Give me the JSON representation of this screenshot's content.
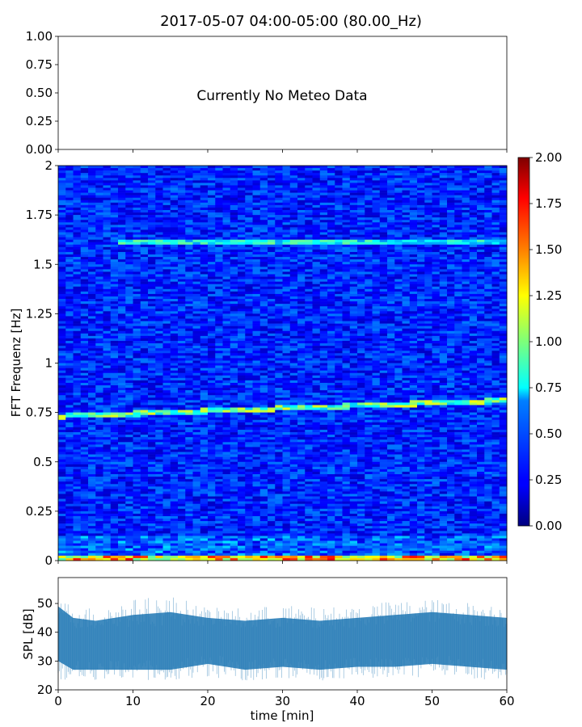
{
  "figure": {
    "title": "2017-05-07 04:00-05:00 (80.00_Hz)"
  },
  "chart_data": [
    {
      "type": "line",
      "panel": "meteo",
      "annotation": "Currently No Meteo Data",
      "ylim": [
        0.0,
        1.0
      ],
      "yticks": [
        "0.00",
        "0.25",
        "0.50",
        "0.75",
        "1.00"
      ],
      "x_tick_labels_shown": false,
      "series": []
    },
    {
      "type": "heatmap",
      "panel": "spectrogram",
      "ylabel": "FFT Frequenz [Hz]",
      "xlim": [
        0,
        60
      ],
      "ylim": [
        0,
        2
      ],
      "yticks": [
        "0",
        "0.25",
        "0.5",
        "0.75",
        "1",
        "1.25",
        "1.5",
        "1.75",
        "2"
      ],
      "colormap": "jet",
      "colorbar": {
        "range": [
          0.0,
          2.0
        ],
        "ticks": [
          "0.00",
          "0.25",
          "0.50",
          "0.75",
          "1.00",
          "1.25",
          "1.50",
          "1.75",
          "2.00"
        ]
      },
      "typical_level": 0.3,
      "bands": [
        {
          "name": "low-frequency band",
          "y_start": 0.73,
          "y_end": 0.81,
          "x_range": [
            0,
            60
          ],
          "level": 1.0
        },
        {
          "name": "near-zero band",
          "y": 0.01,
          "x_range": [
            0,
            60
          ],
          "level": 1.4
        },
        {
          "name": "upper line",
          "y": 1.61,
          "x_range": [
            8,
            60
          ],
          "level": 0.8
        }
      ]
    },
    {
      "type": "area",
      "panel": "spl",
      "xlabel": "time [min]",
      "ylabel": "SPL [dB]",
      "xlim": [
        0,
        60
      ],
      "ylim": [
        20,
        59
      ],
      "xticks": [
        "0",
        "10",
        "20",
        "30",
        "40",
        "50",
        "60"
      ],
      "yticks": [
        "20",
        "30",
        "40",
        "50"
      ],
      "color": "#1f77b4",
      "series": [
        {
          "x": [
            0,
            2,
            5,
            10,
            15,
            20,
            25,
            30,
            35,
            40,
            45,
            50,
            55,
            60
          ],
          "mean": [
            44,
            36,
            35,
            35,
            35,
            38,
            35,
            36,
            35,
            36,
            36,
            38,
            37,
            36
          ],
          "low": [
            30,
            27,
            27,
            27,
            27,
            29,
            27,
            28,
            27,
            28,
            28,
            29,
            28,
            27
          ],
          "high": [
            49,
            45,
            44,
            46,
            47,
            45,
            44,
            45,
            44,
            45,
            46,
            47,
            46,
            45
          ]
        }
      ]
    }
  ]
}
